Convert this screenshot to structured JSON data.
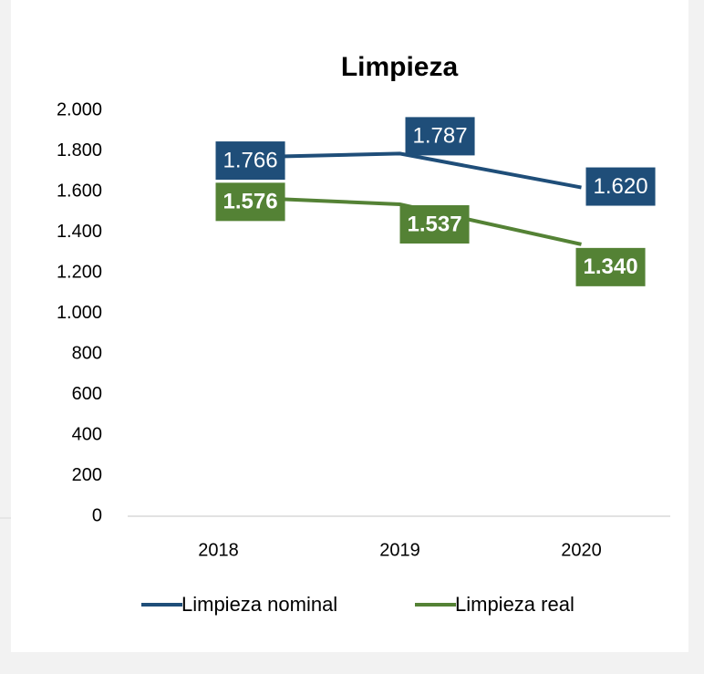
{
  "chart_data": {
    "type": "line",
    "title": "Limpieza",
    "categories": [
      "2018",
      "2019",
      "2020"
    ],
    "series": [
      {
        "name": "Limpieza nominal",
        "color": "#1f4e79",
        "values": [
          1766,
          1787,
          1620
        ],
        "value_labels": [
          "1.766",
          "1.787",
          "1.620"
        ]
      },
      {
        "name": "Limpieza real",
        "color": "#548235",
        "values": [
          1576,
          1537,
          1340
        ],
        "value_labels": [
          "1.576",
          "1.537",
          "1.340"
        ]
      }
    ],
    "ylim": [
      0,
      2000
    ],
    "yticks": [
      0,
      200,
      400,
      600,
      800,
      {
        "value": 1000,
        "label": "1.000"
      },
      {
        "value": 1200,
        "label": "1.200"
      },
      {
        "value": 1400,
        "label": "1.400"
      },
      {
        "value": 1600,
        "label": "1.600"
      },
      {
        "value": 1800,
        "label": "1.800"
      },
      {
        "value": 2000,
        "label": "2.000"
      }
    ],
    "grid": false,
    "legend": "bottom"
  }
}
